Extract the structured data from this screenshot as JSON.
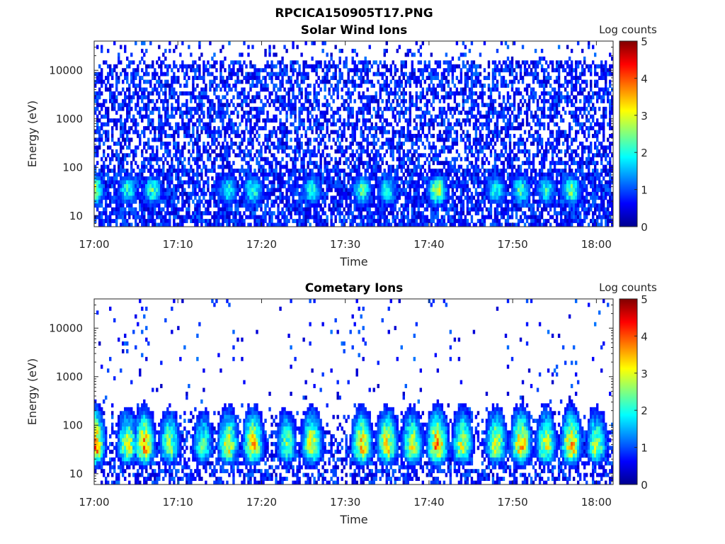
{
  "figure": {
    "title": "RPCICA150905T17.PNG"
  },
  "colorbar": {
    "label": "Log counts",
    "range": [
      0,
      5
    ],
    "ticks": [
      "0",
      "1",
      "2",
      "3",
      "4",
      "5"
    ],
    "colormap": "jet"
  },
  "chart_data": [
    {
      "type": "heatmap",
      "title": "Solar Wind Ions",
      "xlabel": "Time",
      "ylabel": "Energy (eV)",
      "x_range": [
        "17:00",
        "18:02"
      ],
      "x_ticks": [
        "17:00",
        "17:10",
        "17:20",
        "17:30",
        "17:40",
        "17:50",
        "18:00"
      ],
      "y_scale": "log",
      "y_range": [
        6,
        40000
      ],
      "y_ticks": [
        "10",
        "100",
        "1000",
        "10000"
      ],
      "z_label": "Log counts",
      "z_range": [
        0,
        5
      ],
      "peaks": [
        {
          "time": "17:00",
          "energy_eV": 35,
          "log_counts": 2.6
        },
        {
          "time": "17:04",
          "energy_eV": 35,
          "log_counts": 2.0
        },
        {
          "time": "17:07",
          "energy_eV": 35,
          "log_counts": 2.2
        },
        {
          "time": "17:16",
          "energy_eV": 35,
          "log_counts": 2.0
        },
        {
          "time": "17:19",
          "energy_eV": 35,
          "log_counts": 2.2
        },
        {
          "time": "17:26",
          "energy_eV": 35,
          "log_counts": 2.0
        },
        {
          "time": "17:32",
          "energy_eV": 35,
          "log_counts": 2.2
        },
        {
          "time": "17:35",
          "energy_eV": 35,
          "log_counts": 2.0
        },
        {
          "time": "17:41",
          "energy_eV": 35,
          "log_counts": 2.8
        },
        {
          "time": "17:48",
          "energy_eV": 35,
          "log_counts": 2.0
        },
        {
          "time": "17:51",
          "energy_eV": 35,
          "log_counts": 2.2
        },
        {
          "time": "17:54",
          "energy_eV": 35,
          "log_counts": 2.0
        },
        {
          "time": "17:57",
          "energy_eV": 35,
          "log_counts": 2.4
        }
      ]
    },
    {
      "type": "heatmap",
      "title": "Cometary Ions",
      "xlabel": "Time",
      "ylabel": "Energy (eV)",
      "x_range": [
        "17:00",
        "18:02"
      ],
      "x_ticks": [
        "17:00",
        "17:10",
        "17:20",
        "17:30",
        "17:40",
        "17:50",
        "18:00"
      ],
      "y_scale": "log",
      "y_range": [
        6,
        40000
      ],
      "y_ticks": [
        "10",
        "100",
        "1000",
        "10000"
      ],
      "z_label": "Log counts",
      "z_range": [
        0,
        5
      ],
      "peaks": [
        {
          "time": "17:00",
          "energy_eV": 35,
          "log_counts": 3.9
        },
        {
          "time": "17:04",
          "energy_eV": 35,
          "log_counts": 2.8
        },
        {
          "time": "17:06",
          "energy_eV": 35,
          "log_counts": 3.4
        },
        {
          "time": "17:09",
          "energy_eV": 35,
          "log_counts": 2.6
        },
        {
          "time": "17:13",
          "energy_eV": 35,
          "log_counts": 2.2
        },
        {
          "time": "17:16",
          "energy_eV": 35,
          "log_counts": 3.0
        },
        {
          "time": "17:19",
          "energy_eV": 35,
          "log_counts": 3.2
        },
        {
          "time": "17:23",
          "energy_eV": 35,
          "log_counts": 2.4
        },
        {
          "time": "17:26",
          "energy_eV": 35,
          "log_counts": 3.0
        },
        {
          "time": "17:32",
          "energy_eV": 35,
          "log_counts": 3.2
        },
        {
          "time": "17:35",
          "energy_eV": 35,
          "log_counts": 3.2
        },
        {
          "time": "17:38",
          "energy_eV": 35,
          "log_counts": 2.8
        },
        {
          "time": "17:41",
          "energy_eV": 35,
          "log_counts": 3.6
        },
        {
          "time": "17:44",
          "energy_eV": 35,
          "log_counts": 2.8
        },
        {
          "time": "17:48",
          "energy_eV": 35,
          "log_counts": 3.0
        },
        {
          "time": "17:51",
          "energy_eV": 35,
          "log_counts": 3.4
        },
        {
          "time": "17:54",
          "energy_eV": 35,
          "log_counts": 2.8
        },
        {
          "time": "17:57",
          "energy_eV": 35,
          "log_counts": 3.4
        },
        {
          "time": "18:00",
          "energy_eV": 35,
          "log_counts": 2.6
        }
      ]
    }
  ]
}
